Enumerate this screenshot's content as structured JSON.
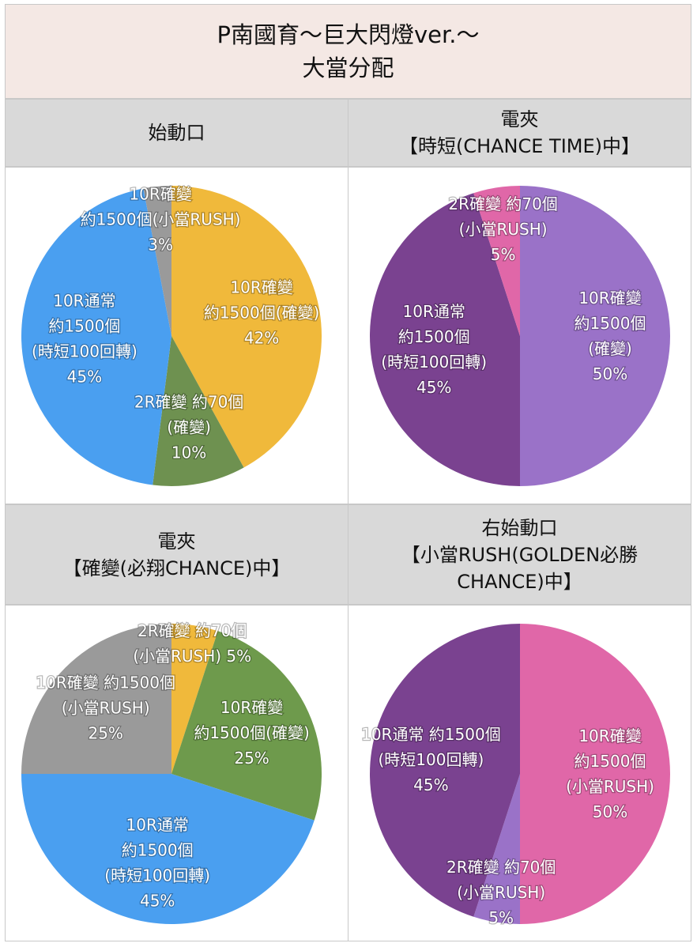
{
  "title": {
    "line1": "P南國育～巨大閃燈ver.～",
    "line2": "大當分配"
  },
  "panels": [
    {
      "heading": [
        "始動口"
      ]
    },
    {
      "heading": [
        "電夾",
        "【時短(CHANCE TIME)中】"
      ]
    },
    {
      "heading": [
        "電夾",
        "【確變(必翔CHANCE)中】"
      ]
    },
    {
      "heading": [
        "右始動口",
        "【小當RUSH(GOLDEN必勝",
        "CHANCE)中】"
      ]
    }
  ],
  "chart_data": [
    {
      "type": "pie",
      "title": "始動口",
      "slices": [
        {
          "label": [
            "10R確變",
            "約1500個(確變)",
            "42%"
          ],
          "value": 42,
          "color": "#f0b93b"
        },
        {
          "label": [
            "2R確變  約70個",
            "(確變)",
            "10%"
          ],
          "value": 10,
          "color": "#6e9150"
        },
        {
          "label": [
            "10R通常",
            "約1500個",
            "(時短100回轉)",
            "45%"
          ],
          "value": 45,
          "color": "#4a9ff0"
        },
        {
          "label": [
            "10R確變",
            "約1500個(小當RUSH)",
            "3%"
          ],
          "value": 3,
          "color": "#9a9a9a"
        }
      ]
    },
    {
      "type": "pie",
      "title": "電夾【時短(CHANCE TIME)中】",
      "slices": [
        {
          "label": [
            "10R確變",
            "約1500個",
            "(確變)",
            "50%"
          ],
          "value": 50,
          "color": "#9a72c8"
        },
        {
          "label": [
            "10R通常",
            "約1500個",
            "(時短100回轉)",
            "45%"
          ],
          "value": 45,
          "color": "#7a4290"
        },
        {
          "label": [
            "2R確變 約70個",
            "(小當RUSH)",
            "5%"
          ],
          "value": 5,
          "color": "#e067a8"
        }
      ]
    },
    {
      "type": "pie",
      "title": "電夾【確變(必翔CHANCE)中】",
      "slices": [
        {
          "label": [
            "2R確變 約70個",
            "(小當RUSH) 5%"
          ],
          "value": 5,
          "color": "#f0b93b"
        },
        {
          "label": [
            "10R確變",
            "約1500個(確變)",
            "25%"
          ],
          "value": 25,
          "color": "#6e9a4c"
        },
        {
          "label": [
            "10R通常",
            "約1500個",
            "(時短100回轉)",
            "45%"
          ],
          "value": 45,
          "color": "#4a9ff0"
        },
        {
          "label": [
            "10R確變 約1500個",
            "(小當RUSH)",
            "25%"
          ],
          "value": 25,
          "color": "#9a9a9a"
        }
      ]
    },
    {
      "type": "pie",
      "title": "右始動口【小當RUSH(GOLDEN必勝CHANCE)中】",
      "slices": [
        {
          "label": [
            "10R確變",
            "約1500個",
            "(小當RUSH)",
            "50%"
          ],
          "value": 50,
          "color": "#e067a8"
        },
        {
          "label": [
            "2R確變 約70個",
            "(小當RUSH)",
            "5%"
          ],
          "value": 5,
          "color": "#9a72c8"
        },
        {
          "label": [
            "10R通常 約1500個",
            "(時短100回轉)",
            "45%"
          ],
          "value": 45,
          "color": "#7a4290"
        }
      ]
    }
  ]
}
